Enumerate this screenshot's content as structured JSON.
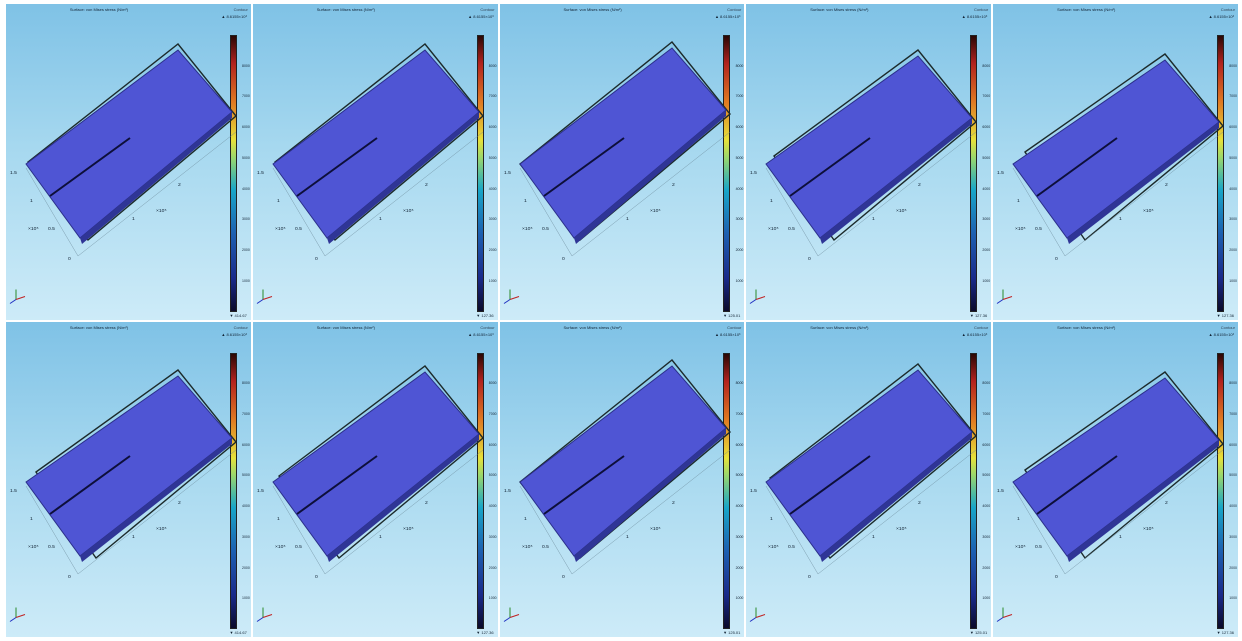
{
  "panels": [
    {
      "title": "Surface: von Mises stress (N/m²)",
      "plot_type": "Contour",
      "max_label": "▲ 8.6155×10³",
      "min_label": "▼ 414.67",
      "colorbar_ticks": [
        "8000",
        "7000",
        "6000",
        "5000",
        "4000",
        "3000",
        "2000",
        "1000"
      ]
    },
    {
      "title": "Surface: von Mises stress (N/m²)",
      "plot_type": "Contour",
      "max_label": "▲ 8.6155×10³",
      "min_label": "▼ 127.36",
      "colorbar_ticks": [
        "8000",
        "7000",
        "6000",
        "5000",
        "4000",
        "3000",
        "2000",
        "1000"
      ]
    },
    {
      "title": "Surface: von Mises stress (N/m²)",
      "plot_type": "Contour",
      "max_label": "▲ 8.6155×10³",
      "min_label": "▼ 125.01",
      "colorbar_ticks": [
        "8000",
        "7000",
        "6000",
        "5000",
        "4000",
        "3000",
        "2000",
        "1000"
      ]
    },
    {
      "title": "Surface: von Mises stress (N/m²)",
      "plot_type": "Contour",
      "max_label": "▲ 8.6155×10³",
      "min_label": "▼ 127.36",
      "colorbar_ticks": [
        "8000",
        "7000",
        "6000",
        "5000",
        "4000",
        "3000",
        "2000",
        "1000"
      ]
    },
    {
      "title": "Surface: von Mises stress (N/m²)",
      "plot_type": "Contour",
      "max_label": "▲ 8.6155×10³",
      "min_label": "▼ 127.36",
      "colorbar_ticks": [
        "8000",
        "7000",
        "6000",
        "5000",
        "4000",
        "3000",
        "2000",
        "1000"
      ]
    },
    {
      "title": "Surface: von Mises stress (N/m²)",
      "plot_type": "Contour",
      "max_label": "▲ 8.6155×10³",
      "min_label": "▼ 414.67",
      "colorbar_ticks": [
        "8000",
        "7000",
        "6000",
        "5000",
        "4000",
        "3000",
        "2000",
        "1000"
      ]
    },
    {
      "title": "Surface: von Mises stress (N/m²)",
      "plot_type": "Contour",
      "max_label": "▲ 8.6155×10³",
      "min_label": "▼ 127.36",
      "colorbar_ticks": [
        "8000",
        "7000",
        "6000",
        "5000",
        "4000",
        "3000",
        "2000",
        "1000"
      ]
    },
    {
      "title": "Surface: von Mises stress (N/m²)",
      "plot_type": "Contour",
      "max_label": "▲ 8.6155×10³",
      "min_label": "▼ 125.01",
      "colorbar_ticks": [
        "8000",
        "7000",
        "6000",
        "5000",
        "4000",
        "3000",
        "2000",
        "1000"
      ]
    },
    {
      "title": "Surface: von Mises stress (N/m²)",
      "plot_type": "Contour",
      "max_label": "▲ 8.6155×10³",
      "min_label": "▼ 125.01",
      "colorbar_ticks": [
        "8000",
        "7000",
        "6000",
        "5000",
        "4000",
        "3000",
        "2000",
        "1000"
      ]
    },
    {
      "title": "Surface: von Mises stress (N/m²)",
      "plot_type": "Contour",
      "max_label": "▲ 8.6155×10³",
      "min_label": "▼ 127.36",
      "colorbar_ticks": [
        "8000",
        "7000",
        "6000",
        "5000",
        "4000",
        "3000",
        "2000",
        "1000"
      ]
    }
  ],
  "axes": {
    "tick_1_5": "1.5",
    "tick_1": "1",
    "tick_0_5": "0.5",
    "tick_0": "0",
    "tick_2": "2",
    "exp_label": "×10⁵"
  },
  "colors": {
    "plate": "#4f55d4",
    "plate_edge": "#2b2f8a",
    "frame": "#1c2a2a",
    "crack": "#0d0f3a",
    "bg_top": "#7fc2e6",
    "bg_bottom": "#cdebf8"
  },
  "icons": {
    "axis_triad": "axis-triad-icon"
  }
}
